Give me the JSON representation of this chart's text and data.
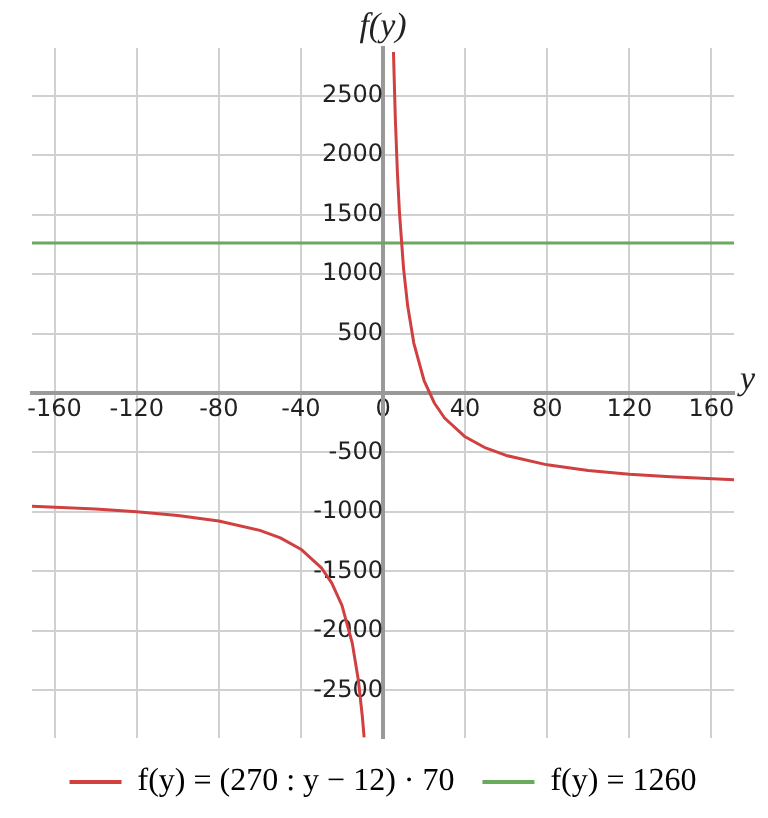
{
  "chart_data": {
    "type": "line",
    "xlabel": "y",
    "ylabel": "f(y)",
    "xlim": [
      -171,
      171
    ],
    "ylim": [
      -2900,
      2900
    ],
    "xticks": [
      -160,
      -120,
      -80,
      -40,
      0,
      40,
      80,
      120,
      160
    ],
    "yticks": [
      -2500,
      -2000,
      -1500,
      -1000,
      -500,
      500,
      1000,
      1500,
      2000,
      2500
    ],
    "grid": true,
    "legend": "bottom",
    "marker": "none",
    "line_style": "solid",
    "series": [
      {
        "name": "f(y) = (270 : y − 12) · 70",
        "color": "#d04040",
        "x": [
          -171,
          -140,
          -120,
          -100,
          -80,
          -60,
          -50,
          -40,
          -30,
          -25,
          -20,
          -15,
          -12,
          -10,
          -9.2,
          0,
          5.1,
          6,
          7,
          8,
          10,
          12,
          15,
          20,
          25,
          30,
          40,
          50,
          60,
          80,
          100,
          120,
          140,
          171
        ],
        "values": [
          -951,
          -975,
          -998,
          -1029,
          -1076,
          -1155,
          -1218,
          -1313,
          -1470,
          -1596,
          -1785,
          -2100,
          -2415,
          -2730,
          -2894,
          null,
          2866,
          2310,
          1860,
          1523,
          1050,
          735,
          420,
          105,
          -84,
          -210,
          -368,
          -462,
          -525,
          -604,
          -651,
          -683,
          -705,
          -729
        ]
      },
      {
        "name": "f(y) = 1260",
        "color": "#6aaa5e",
        "x": [
          -171,
          171
        ],
        "values": [
          1260,
          1260
        ]
      }
    ]
  }
}
